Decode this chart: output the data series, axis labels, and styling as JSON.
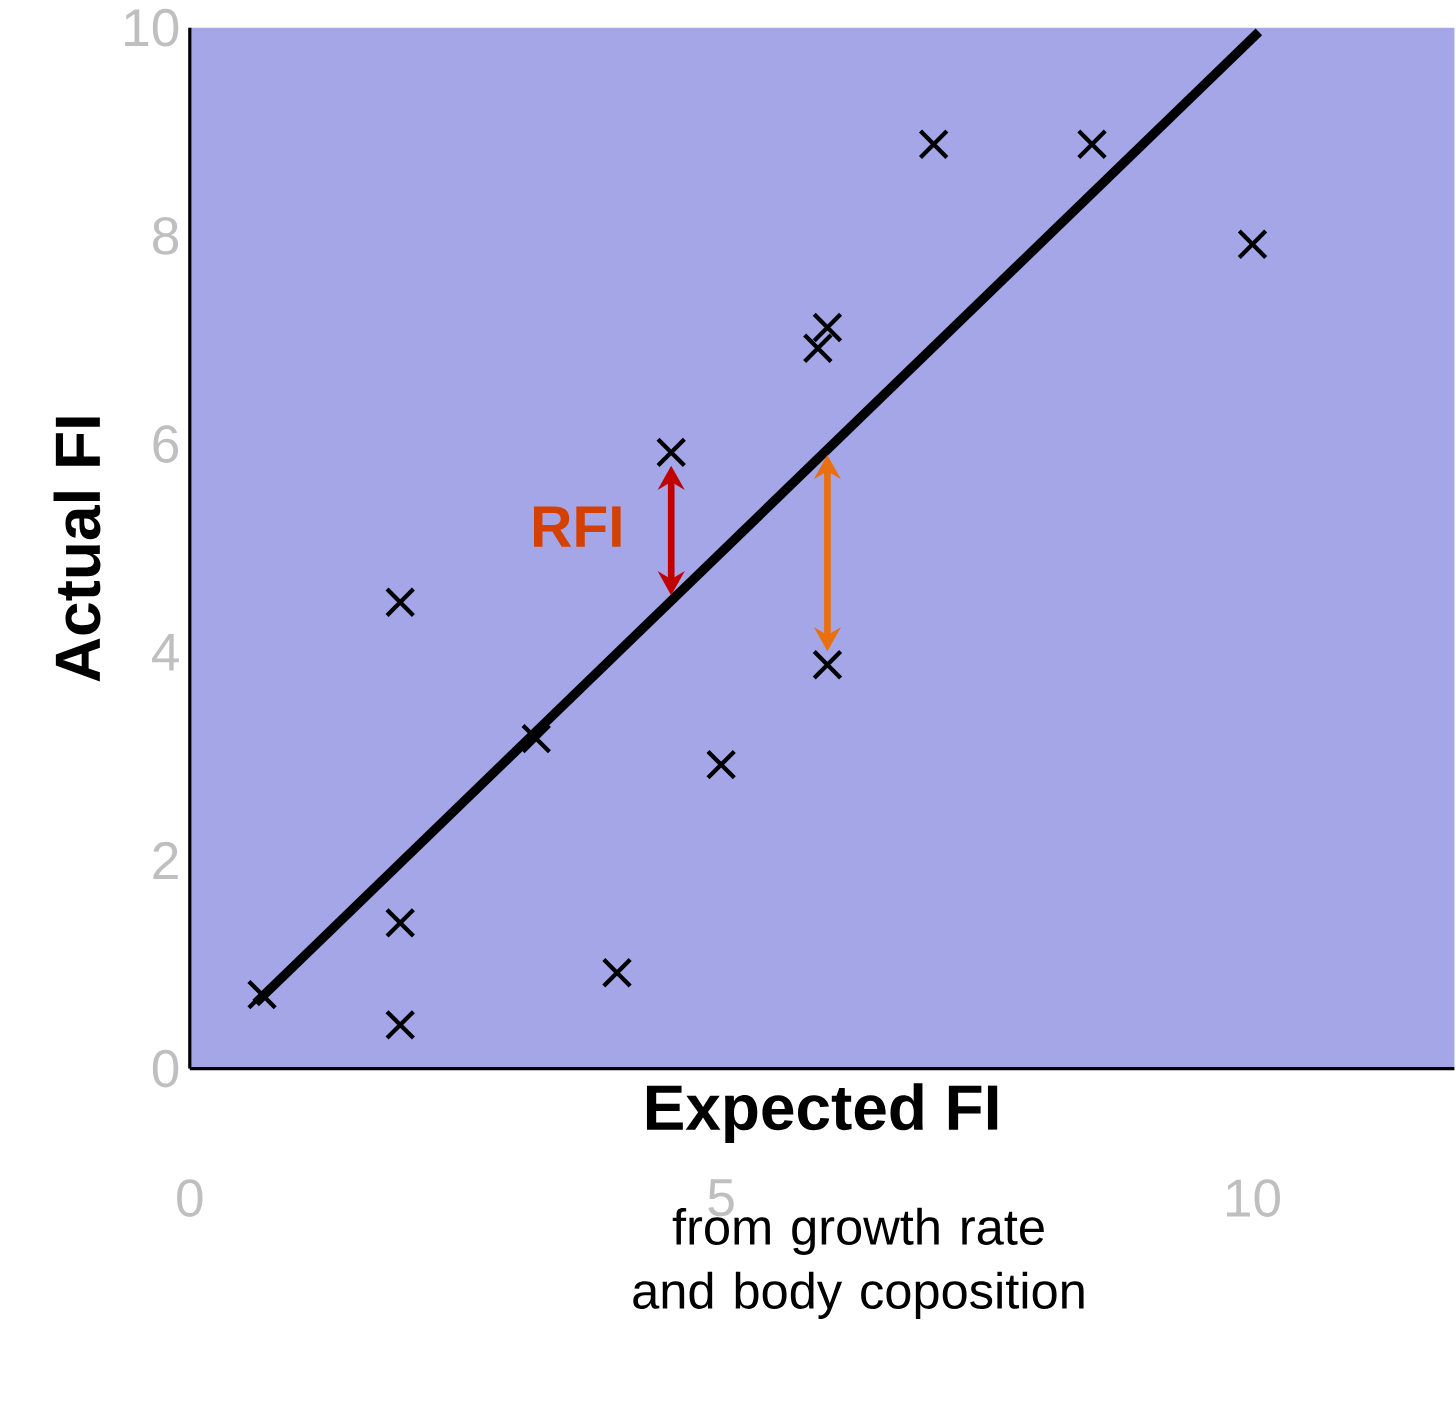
{
  "chart_data": {
    "type": "scatter",
    "xlabel": "Expected FI",
    "ylabel": "Actual  FI",
    "xlim": [
      0,
      11.9
    ],
    "ylim": [
      0,
      10
    ],
    "xticks": [
      0,
      5,
      10
    ],
    "yticks": [
      0,
      2,
      4,
      6,
      8,
      10
    ],
    "series": [
      {
        "color": "#000000",
        "marker": "cross",
        "x": [
          0.68,
          1.98,
          1.98,
          1.98,
          3.26,
          4.02,
          4.53,
          5.0,
          6.0,
          5.91,
          6.0,
          7.0,
          8.49,
          10.0
        ],
        "values": [
          0.71,
          0.42,
          1.4,
          4.48,
          3.17,
          0.92,
          5.92,
          2.92,
          3.88,
          6.92,
          7.12,
          8.88,
          8.88,
          7.92
        ]
      },
      {
        "type": "line",
        "color": "#000000",
        "x": [
          0.62,
          10.06
        ],
        "values": [
          0.63,
          9.96
        ]
      }
    ],
    "annotations": [
      "RFI",
      "from growth rate and body coposition"
    ]
  }
}
